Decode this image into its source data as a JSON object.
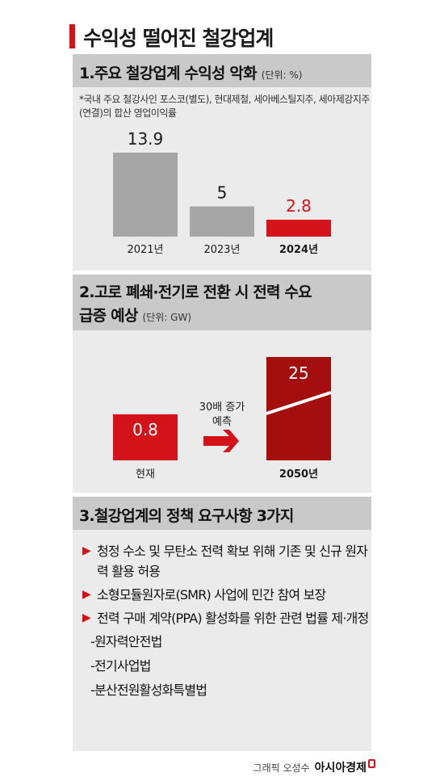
{
  "title": "수익성 떨어진 철강업계",
  "section1": {
    "heading": "1.주요 철강업계 수익성 악화",
    "unit": "(단위: %)",
    "note": "*국내 주요 철강사인 포스코(별도), 현대제철, 세아베스틸지주, 세아제강지주(연결)의 합산 영업이익률"
  },
  "section2": {
    "heading_line1": "2.고로 폐쇄·전기로 전환 시 전력 수요",
    "heading_line2": "급증 예상",
    "unit": "(단위: GW)",
    "arrow_label_line1": "30배 증가",
    "arrow_label_line2": "예측"
  },
  "section3": {
    "heading": "3.철강업계의 정책 요구사항 3가지",
    "items": [
      "청정 수소 및 무탄소 전력 확보 위해 기존 및 신규 원자력 활용 허용",
      "소형모듈원자로(SMR) 사업에 민간 참여 보장",
      "전력 구매 계약(PPA) 활성화를 위한 관련 법률 제·개정"
    ],
    "subitems": [
      "-원자력안전법",
      "-전기사업법",
      "-분산전원활성화특별법"
    ]
  },
  "credit": {
    "label": "그래픽 오성수",
    "brand": "아시아경제"
  },
  "colors": {
    "accent": "#d4121a",
    "dark_red": "#a50e0e",
    "gray_bar": "#a6a6a6",
    "panel": "#ebebeb",
    "panel_head": "#c9c9c9"
  },
  "icons": {
    "arrow": "right-arrow-icon",
    "brand": "brand-mark-icon"
  },
  "chart_data": [
    {
      "type": "bar",
      "categories": [
        "2021년",
        "2023년",
        "2024년"
      ],
      "values": [
        13.9,
        5,
        2.8
      ],
      "labels": [
        "13.9",
        "5",
        "2.8"
      ],
      "highlight_index": 2,
      "ylabel": "",
      "ylim": [
        0,
        13.9
      ]
    },
    {
      "type": "bar",
      "categories": [
        "현재",
        "2050년"
      ],
      "values": [
        0.8,
        25
      ],
      "labels": [
        "0.8",
        "25"
      ]
    }
  ]
}
